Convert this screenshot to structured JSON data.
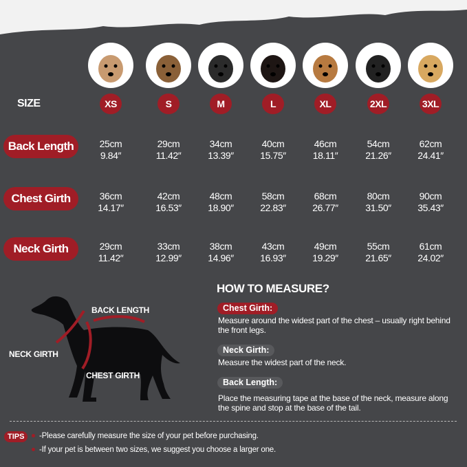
{
  "header": {
    "size_label": "SIZE"
  },
  "sizes": [
    "XS",
    "S",
    "M",
    "L",
    "XL",
    "2XL",
    "3XL"
  ],
  "dog_photos": [
    "chihuahua",
    "yorkshire-terrier",
    "french-bulldog",
    "dachshund",
    "beagle",
    "border-collie",
    "golden-retriever"
  ],
  "rows": [
    {
      "label": "Back Length",
      "cm": [
        "25cm",
        "29cm",
        "34cm",
        "40cm",
        "46cm",
        "54cm",
        "62cm"
      ],
      "inch": [
        "9.84″",
        "11.42″",
        "13.39″",
        "15.75″",
        "18.11″",
        "21.26″",
        "24.41″"
      ]
    },
    {
      "label": "Chest Girth",
      "cm": [
        "36cm",
        "42cm",
        "48cm",
        "58cm",
        "68cm",
        "80cm",
        "90cm"
      ],
      "inch": [
        "14.17″",
        "16.53″",
        "18.90″",
        "22.83″",
        "26.77″",
        "31.50″",
        "35.43″"
      ]
    },
    {
      "label": "Neck Girth",
      "cm": [
        "29cm",
        "33cm",
        "38cm",
        "43cm",
        "49cm",
        "55cm",
        "61cm"
      ],
      "inch": [
        "11.42″",
        "12.99″",
        "14.96″",
        "16.93″",
        "19.29″",
        "21.65″",
        "24.02″"
      ]
    }
  ],
  "diagram": {
    "back_length": "BACK LENGTH",
    "neck_girth": "NECK GIRTH",
    "chest_girth": "CHEST GIRTH"
  },
  "how_to": {
    "title": "HOW TO MEASURE?",
    "items": [
      {
        "label": "Chest Girth:",
        "text": "Measure around the widest part of the chest – usually right behind the front legs."
      },
      {
        "label": "Neck Girth:",
        "text": "Measure the widest part of the neck."
      },
      {
        "label": "Back Length:",
        "text": "Place the measuring tape at the base of the neck, measure along the spine and stop at the base of the tail."
      }
    ]
  },
  "tips": {
    "label": "TIPS",
    "items": [
      "-Please carefully measure the size of your pet before purchasing.",
      "-If your pet is between two sizes, we suggest you choose a larger one."
    ]
  },
  "colors": {
    "background": "#454649",
    "accent": "#a01d26",
    "text": "#ffffff"
  }
}
